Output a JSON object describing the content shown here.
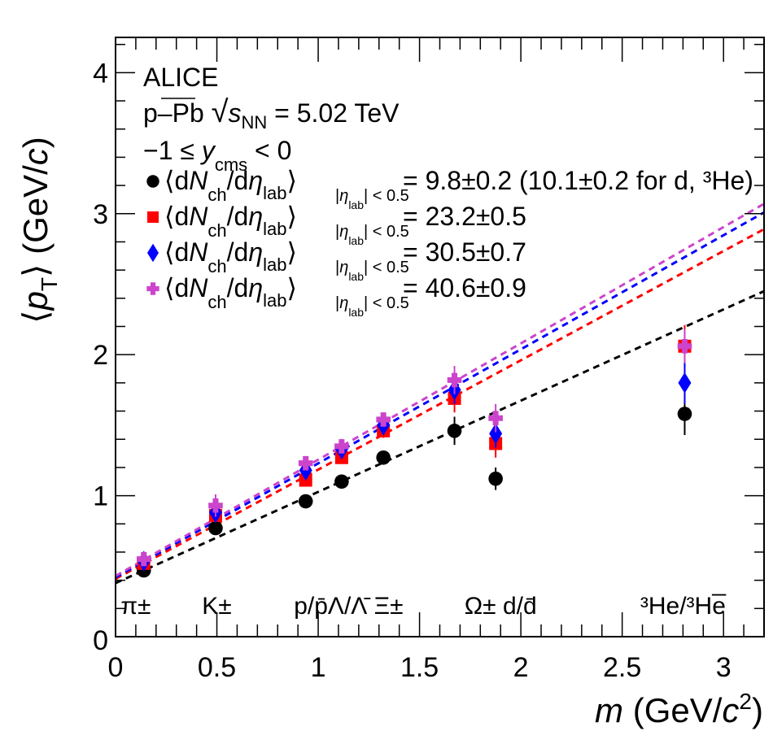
{
  "chart_data": {
    "type": "scatter",
    "title": "",
    "experiment_label": "ALICE",
    "system_label": {
      "prefix": "p–Pb ",
      "sqrt": "s",
      "sqrt_sub": "NN",
      "suffix": " = 5.02 TeV"
    },
    "rapidity_label": {
      "prefix": "−1 ≤ ",
      "var": "y",
      "sub": "cms",
      "suffix": " < 0"
    },
    "xlabel": {
      "var": "m",
      "unit_prefix": " (GeV/",
      "unit_var": "c",
      "unit_sup": "2",
      "unit_suffix": ")"
    },
    "ylabel": {
      "open": "⟨",
      "var": "p",
      "sub": "T",
      "close": "⟩",
      "unit_prefix": " (GeV/",
      "unit_var": "c",
      "unit_suffix": ")"
    },
    "xlim": [
      0,
      3.2
    ],
    "ylim": [
      0,
      4.25
    ],
    "xticks": [
      "0",
      "0.5",
      "1",
      "1.5",
      "2",
      "2.5",
      "3"
    ],
    "xtick_values": [
      0,
      0.5,
      1,
      1.5,
      2,
      2.5,
      3
    ],
    "yticks": [
      "0",
      "1",
      "2",
      "3",
      "4"
    ],
    "ytick_values": [
      0,
      1,
      2,
      3,
      4
    ],
    "grid": false,
    "legend_placement": "top-left",
    "legend_entry_text": {
      "lhs": "⟨dN",
      "sub_ch": "ch",
      "mid": "/dη",
      "sub_lab": "lab",
      "cond": "|η",
      "cond_sub": "lab",
      "cond_tail": "| < 0.5"
    },
    "particles": [
      {
        "label": "π±",
        "mass": 0.1396
      },
      {
        "label": "K±",
        "mass": 0.4937
      },
      {
        "label": "p/p̄",
        "mass": 0.9383
      },
      {
        "label": "Λ/Λ̄",
        "mass": 1.1157
      },
      {
        "label": "Ξ±",
        "mass": 1.3217
      },
      {
        "label": "Ω±",
        "mass": 1.6725
      },
      {
        "label": "d/d̄",
        "mass": 1.8756
      },
      {
        "label": "³He/³H̄e",
        "mass": 2.8084
      }
    ],
    "particle_annotations": [
      {
        "text": "π±",
        "x": 0.1
      },
      {
        "text": "K±",
        "x": 0.5
      },
      {
        "text": "p/p̄Λ/Λ̄ Ξ±",
        "x": 1.15
      },
      {
        "text": "Ω± d/d̄",
        "x": 1.9
      },
      {
        "text": "³He/³He̅",
        "x": 2.8
      }
    ],
    "x": [
      0.1396,
      0.4937,
      0.9383,
      1.1157,
      1.3217,
      1.6725,
      1.8756,
      2.8084
    ],
    "series": [
      {
        "name": "⟨dNch/dηlab⟩|ηlab|<0.5 = 9.8±0.2 (10.1±0.2 for d, ³He)",
        "value_text": "= 9.8±0.2 (10.1±0.2 for d, ³He)",
        "marker": "circle",
        "color": "#000000",
        "values": [
          0.47,
          0.77,
          0.96,
          1.1,
          1.27,
          1.46,
          1.12,
          1.58
        ],
        "errors": [
          0.02,
          0.03,
          0.03,
          0.03,
          0.04,
          0.1,
          0.08,
          0.15
        ],
        "fit": {
          "intercept": 0.38,
          "slope": 0.647
        }
      },
      {
        "name": "⟨dNch/dηlab⟩|ηlab|<0.5 = 23.2±0.5",
        "value_text": "= 23.2±0.5",
        "marker": "square",
        "color": "#ff0000",
        "values": [
          0.52,
          0.86,
          1.11,
          1.27,
          1.46,
          1.69,
          1.37,
          2.06
        ],
        "errors": [
          0.02,
          0.04,
          0.04,
          0.04,
          0.05,
          0.1,
          0.1,
          0.15
        ],
        "fit": {
          "intercept": 0.41,
          "slope": 0.775
        }
      },
      {
        "name": "⟨dNch/dηlab⟩|ηlab|<0.5 = 30.5±0.7",
        "value_text": "= 30.5±0.7",
        "marker": "diamond",
        "color": "#0000ff",
        "values": [
          0.535,
          0.88,
          1.18,
          1.33,
          1.5,
          1.75,
          1.44,
          1.8
        ],
        "errors": [
          0.02,
          0.04,
          0.04,
          0.04,
          0.05,
          0.1,
          0.1,
          0.15
        ],
        "fit": {
          "intercept": 0.42,
          "slope": 0.809
        }
      },
      {
        "name": "⟨dNch/dηlab⟩|ηlab|<0.5 = 40.6±0.9",
        "value_text": "= 40.6±0.9",
        "marker": "cross",
        "color": "#cc44cc",
        "values": [
          0.55,
          0.93,
          1.23,
          1.35,
          1.54,
          1.82,
          1.55,
          2.06
        ],
        "errors": [
          0.03,
          0.08,
          0.04,
          0.04,
          0.05,
          0.1,
          0.1,
          0.12
        ],
        "fit": {
          "intercept": 0.43,
          "slope": 0.825
        }
      }
    ]
  }
}
